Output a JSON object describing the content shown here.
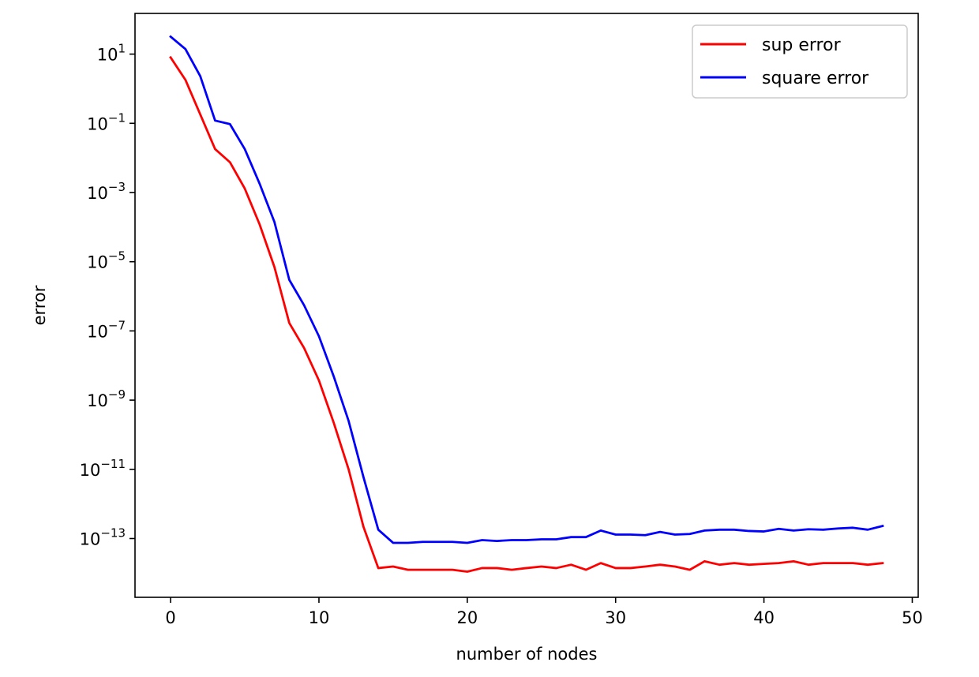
{
  "chart_data": {
    "type": "line",
    "title": "",
    "xlabel": "number of nodes",
    "ylabel": "error",
    "yscale": "log",
    "xlim": [
      -2.4,
      50.4
    ],
    "ylim": [
      2e-15,
      150
    ],
    "xticks": [
      0,
      10,
      20,
      30,
      40,
      50
    ],
    "yticks": [
      {
        "value": 10,
        "base": "10",
        "exp": "1"
      },
      {
        "value": 0.1,
        "base": "10",
        "exp": "−1"
      },
      {
        "value": 0.001,
        "base": "10",
        "exp": "−3"
      },
      {
        "value": 1e-05,
        "base": "10",
        "exp": "−5"
      },
      {
        "value": 1e-07,
        "base": "10",
        "exp": "−7"
      },
      {
        "value": 1e-09,
        "base": "10",
        "exp": "−9"
      },
      {
        "value": 1e-11,
        "base": "10",
        "exp": "−11"
      },
      {
        "value": 1e-13,
        "base": "10",
        "exp": "−13"
      }
    ],
    "grid": false,
    "legend": {
      "position": "top-right"
    },
    "x": [
      0,
      1,
      2,
      3,
      4,
      5,
      6,
      7,
      8,
      9,
      10,
      11,
      12,
      13,
      14,
      15,
      16,
      17,
      18,
      19,
      20,
      21,
      22,
      23,
      24,
      25,
      26,
      27,
      28,
      29,
      30,
      31,
      32,
      33,
      34,
      35,
      36,
      37,
      38,
      39,
      40,
      41,
      42,
      43,
      44,
      45,
      46,
      47,
      48
    ],
    "series": [
      {
        "name": "sup error",
        "color": "#ff0000",
        "values": [
          8,
          1.8,
          0.18,
          0.018,
          0.0075,
          0.0013,
          0.00012,
          7e-06,
          1.7e-07,
          3.2e-08,
          3.7e-09,
          2.2e-10,
          1e-11,
          2.2e-13,
          1.4e-14,
          1.55e-14,
          1.25e-14,
          1.25e-14,
          1.25e-14,
          1.25e-14,
          1.1e-14,
          1.4e-14,
          1.4e-14,
          1.25e-14,
          1.4e-14,
          1.55e-14,
          1.4e-14,
          1.75e-14,
          1.25e-14,
          1.95e-14,
          1.4e-14,
          1.4e-14,
          1.55e-14,
          1.75e-14,
          1.55e-14,
          1.25e-14,
          2.2e-14,
          1.75e-14,
          1.95e-14,
          1.75e-14,
          1.85e-14,
          1.95e-14,
          2.2e-14,
          1.75e-14,
          1.95e-14,
          1.95e-14,
          1.95e-14,
          1.75e-14,
          1.95e-14
        ]
      },
      {
        "name": "square error",
        "color": "#0000ff",
        "values": [
          32,
          14,
          2.3,
          0.12,
          0.095,
          0.018,
          0.0018,
          0.00014,
          3e-06,
          5.5e-07,
          7e-08,
          4.8e-09,
          2.5e-10,
          6e-12,
          1.8e-13,
          7.5e-14,
          7.5e-14,
          8e-14,
          8e-14,
          8e-14,
          7.5e-14,
          9e-14,
          8.5e-14,
          9e-14,
          9e-14,
          9.5e-14,
          9.5e-14,
          1.1e-13,
          1.1e-13,
          1.7e-13,
          1.3e-13,
          1.3e-13,
          1.25e-13,
          1.55e-13,
          1.3e-13,
          1.35e-13,
          1.7e-13,
          1.8e-13,
          1.8e-13,
          1.65e-13,
          1.6e-13,
          1.9e-13,
          1.7e-13,
          1.85e-13,
          1.8e-13,
          1.95e-13,
          2.05e-13,
          1.8e-13,
          2.3e-13
        ]
      }
    ]
  }
}
